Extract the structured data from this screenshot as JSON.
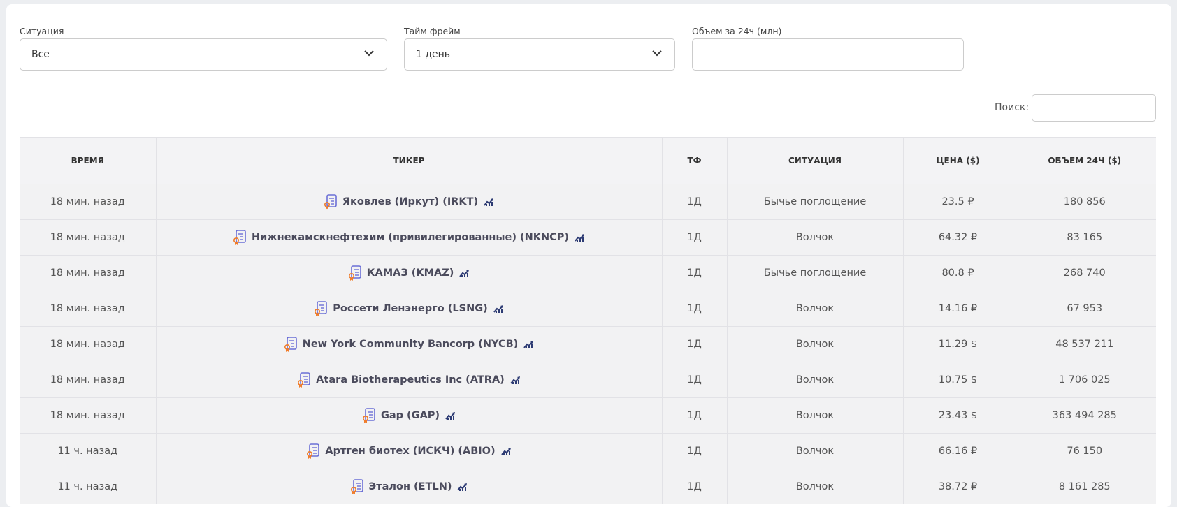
{
  "filters": [
    {
      "label": "Ситуация",
      "value": "Все"
    },
    {
      "label": "Тайм фрейм",
      "value": "1 день"
    },
    {
      "label": "Объем за 24ч (млн)"
    }
  ],
  "search": {
    "label": "Поиск:"
  },
  "table": {
    "headers": [
      "ВРЕМЯ",
      "ТИКЕР",
      "ТФ",
      "СИТУАЦИЯ",
      "ЦЕНА ($)",
      "ОБЪЕМ 24Ч ($)"
    ],
    "rows": [
      [
        "18 мин. назад",
        "Яковлев (Иркут) (IRKT)",
        "1Д",
        "Бычье поглощение",
        "23.5 ₽",
        "180 856"
      ],
      [
        "18 мин. назад",
        "Нижнекамскнефтехим (привилегированные) (NKNCP)",
        "1Д",
        "Волчок",
        "64.32 ₽",
        "83 165"
      ],
      [
        "18 мин. назад",
        "КАМАЗ (KMAZ)",
        "1Д",
        "Бычье поглощение",
        "80.8 ₽",
        "268 740"
      ],
      [
        "18 мин. назад",
        "Россети Ленэнерго (LSNG)",
        "1Д",
        "Волчок",
        "14.16 ₽",
        "67 953"
      ],
      [
        "18 мин. назад",
        "New York Community Bancorp (NYCB)",
        "1Д",
        "Волчок",
        "11.29 $",
        "48 537 211"
      ],
      [
        "18 мин. назад",
        "Atara Biotherapeutics Inc (ATRA)",
        "1Д",
        "Волчок",
        "10.75 $",
        "1 706 025"
      ],
      [
        "18 мин. назад",
        "Gap (GAP)",
        "1Д",
        "Волчок",
        "23.43 $",
        "363 494 285"
      ],
      [
        "11 ч. назад",
        "Артген биотех (ИСКЧ) (ABIO)",
        "1Д",
        "Волчок",
        "66.16 ₽",
        "76 150"
      ],
      [
        "11 ч. назад",
        "Эталон (ETLN)",
        "1Д",
        "Волчок",
        "38.72 ₽",
        "8 161 285"
      ]
    ]
  }
}
